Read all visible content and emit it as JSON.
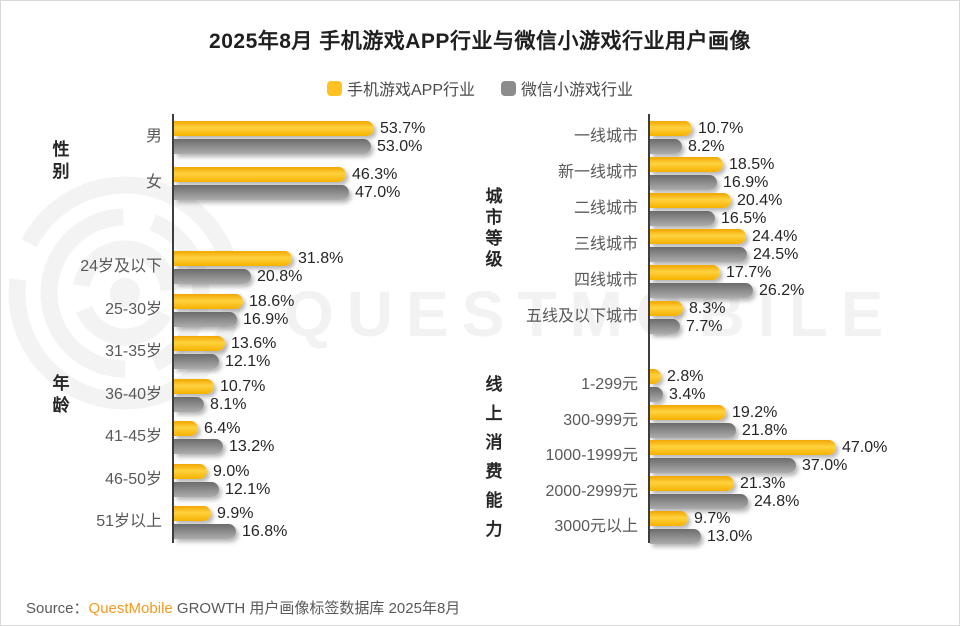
{
  "title": "2025年8月 手机游戏APP行业与微信小游戏行业用户画像",
  "legend": {
    "items": [
      {
        "label": "手机游戏APP行业",
        "color": "#FFC222"
      },
      {
        "label": "微信小游戏行业",
        "color": "#8C8C8C"
      }
    ]
  },
  "watermark": {
    "brand_text": "QUESTMOBILE"
  },
  "source": {
    "prefix": "Source：",
    "brand": "QuestMobile",
    "suffix": " GROWTH 用户画像标签数据库 2025年8月"
  },
  "colors": {
    "app_series_yellow": "#FFC222",
    "mini_series_gray": "#8C8C8C",
    "brand_orange": "#F59A23",
    "axis": "#3D3D3D",
    "watermark_gray": "#F2F2F2"
  },
  "chart_data": {
    "type": "bar",
    "orientation": "horizontal",
    "unit": "%",
    "title": "2025年8月 手机游戏APP行业与微信小游戏行业用户画像",
    "legend_position": "top",
    "series": [
      "手机游戏APP行业",
      "微信小游戏行业"
    ],
    "panels": [
      {
        "sections": [
          {
            "key": "gender",
            "name": "性别",
            "rows": [
              {
                "label": "男",
                "values": [
                  53.7,
                  53.0
                ]
              },
              {
                "label": "女",
                "values": [
                  46.3,
                  47.0
                ]
              }
            ]
          },
          {
            "key": "age",
            "name": "年龄",
            "rows": [
              {
                "label": "24岁及以下",
                "values": [
                  31.8,
                  20.8
                ]
              },
              {
                "label": "25-30岁",
                "values": [
                  18.6,
                  16.9
                ]
              },
              {
                "label": "31-35岁",
                "values": [
                  13.6,
                  12.1
                ]
              },
              {
                "label": "36-40岁",
                "values": [
                  10.7,
                  8.1
                ]
              },
              {
                "label": "41-45岁",
                "values": [
                  6.4,
                  13.2
                ]
              },
              {
                "label": "46-50岁",
                "values": [
                  9.0,
                  12.1
                ]
              },
              {
                "label": "51岁以上",
                "values": [
                  9.9,
                  16.8
                ]
              }
            ]
          }
        ]
      },
      {
        "sections": [
          {
            "key": "city-tier",
            "name": "城市等级",
            "rows": [
              {
                "label": "一线城市",
                "values": [
                  10.7,
                  8.2
                ]
              },
              {
                "label": "新一线城市",
                "values": [
                  18.5,
                  16.9
                ]
              },
              {
                "label": "二线城市",
                "values": [
                  20.4,
                  16.5
                ]
              },
              {
                "label": "三线城市",
                "values": [
                  24.4,
                  24.5
                ]
              },
              {
                "label": "四线城市",
                "values": [
                  17.7,
                  26.2
                ]
              },
              {
                "label": "五线及以下城市",
                "values": [
                  8.3,
                  7.7
                ]
              }
            ]
          },
          {
            "key": "online-spending",
            "name": "线上消费能力",
            "rows": [
              {
                "label": "1-299元",
                "values": [
                  2.8,
                  3.4
                ]
              },
              {
                "label": "300-999元",
                "values": [
                  19.2,
                  21.8
                ]
              },
              {
                "label": "1000-1999元",
                "values": [
                  47.0,
                  37.0
                ]
              },
              {
                "label": "2000-2999元",
                "values": [
                  21.3,
                  24.8
                ]
              },
              {
                "label": "3000元以上",
                "values": [
                  9.7,
                  13.0
                ]
              }
            ]
          }
        ]
      }
    ]
  }
}
